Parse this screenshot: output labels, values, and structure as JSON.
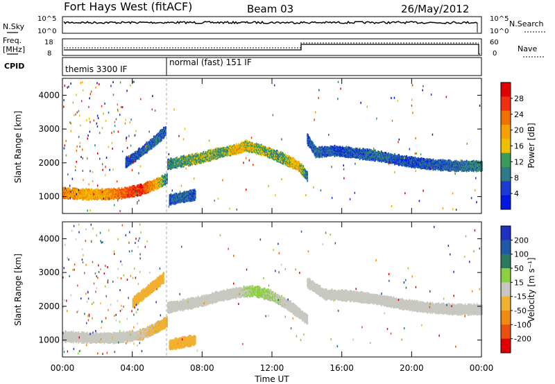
{
  "header": {
    "station": "Fort Hays West (fitACF)",
    "beam": "Beam 03",
    "date": "26/May/2012"
  },
  "top_panels": {
    "nsky_label": "N.Sky",
    "nsky_ticks": [
      "10^5",
      "10^0"
    ],
    "nsearch_label": "N.Search",
    "nsearch_ticks": [
      "10^5",
      "10^0"
    ],
    "freq_label_1": "Freq.",
    "freq_label_2": "[MHz]",
    "freq_ticks": [
      "18",
      "8"
    ],
    "nave_label": "Nave",
    "nave_ticks": [
      "60",
      "0"
    ],
    "cpid_label": "CPID",
    "cpid_modes": [
      {
        "name": "themis 3300 IF",
        "start_hour": 0,
        "end_hour": 6
      },
      {
        "name": "normal (fast) 151 IF",
        "start_hour": 6,
        "end_hour": 24
      }
    ]
  },
  "colors": {
    "power_scale": [
      "#0018e0",
      "#1a3cd0",
      "#2e7a8a",
      "#3a9a5a",
      "#f0c000",
      "#f8a000",
      "#f07000",
      "#f03010",
      "#e00000"
    ],
    "velocity_scale": [
      "#2030c0",
      "#2058a8",
      "#2a7a60",
      "#8cd040",
      "#c8c8c0",
      "#f0b030",
      "#f08a10",
      "#e85010",
      "#e00000"
    ]
  },
  "chart_data": [
    {
      "type": "heatmap",
      "name": "power",
      "ylabel": "Slant Range [km]",
      "yticks": [
        "1000",
        "2000",
        "3000",
        "4000"
      ],
      "ylim": [
        500,
        4500
      ],
      "xlim": [
        0,
        24
      ],
      "colorbar_label": "Power [dB]",
      "colorbar_ticks": [
        "28",
        "24",
        "20",
        "16",
        "12",
        "8",
        "4"
      ],
      "colorbar_range": [
        0,
        32
      ],
      "bands": [
        {
          "hours": [
            0,
            0.6,
            1.5,
            2.5,
            3.5,
            4.5,
            5.5,
            6.0
          ],
          "range_km": [
            1100,
            1080,
            1060,
            1060,
            1100,
            1200,
            1400,
            1550
          ],
          "power_db": [
            22,
            20,
            18,
            20,
            24,
            28,
            16,
            8
          ]
        },
        {
          "hours": [
            6.0,
            7.0,
            8.0,
            9.0,
            10.0,
            10.5,
            11.5,
            12.5,
            13.5,
            14.0
          ],
          "range_km": [
            1950,
            2050,
            2150,
            2300,
            2400,
            2500,
            2350,
            2150,
            1900,
            1600
          ],
          "power_db": [
            10,
            12,
            14,
            12,
            18,
            16,
            14,
            12,
            18,
            8
          ]
        },
        {
          "hours": [
            14.0,
            14.5,
            15.5,
            16.5,
            18.0,
            19.5,
            21.0,
            22.5,
            24.0
          ],
          "range_km": [
            2700,
            2300,
            2350,
            2300,
            2200,
            2050,
            1950,
            1900,
            1900
          ],
          "power_db": [
            6,
            8,
            6,
            6,
            8,
            6,
            6,
            8,
            10
          ]
        },
        {
          "hours": [
            3.6,
            4.2,
            4.8,
            5.4,
            5.9
          ],
          "range_km": [
            2000,
            2200,
            2450,
            2700,
            2950
          ],
          "power_db": [
            6,
            6,
            8,
            8,
            6
          ]
        },
        {
          "hours": [
            6.1,
            6.6,
            7.1,
            7.6
          ],
          "range_km": [
            900,
            950,
            1000,
            1050
          ],
          "power_db": [
            6,
            8,
            8,
            6
          ]
        }
      ]
    },
    {
      "type": "heatmap",
      "name": "velocity",
      "ylabel": "Slant Range [km]",
      "yticks": [
        "1000",
        "2000",
        "3000",
        "4000"
      ],
      "ylim": [
        500,
        4500
      ],
      "xlim": [
        0,
        24
      ],
      "xlabel": "Time UT",
      "xticks": [
        "00:00",
        "04:00",
        "08:00",
        "12:00",
        "16:00",
        "20:00",
        "00:00"
      ],
      "colorbar_label": "Velocity [m s⁻¹]",
      "colorbar_ticks": [
        "200",
        "100",
        "50",
        "15",
        "-15",
        "-50",
        "-100",
        "-200"
      ],
      "colorbar_range": [
        -250,
        250
      ],
      "bands": [
        {
          "hours": [
            0,
            1.5,
            3.0,
            4.5,
            5.5,
            6.0
          ],
          "range_km": [
            1100,
            1060,
            1060,
            1150,
            1400,
            1550
          ],
          "velocity": [
            0,
            -5,
            0,
            -20,
            -40,
            -60
          ]
        },
        {
          "hours": [
            6.0,
            7.0,
            8.0,
            9.0,
            10.0,
            11.0,
            12.0,
            13.0,
            14.0
          ],
          "range_km": [
            1950,
            2050,
            2150,
            2300,
            2400,
            2450,
            2300,
            2000,
            1600
          ],
          "velocity": [
            0,
            5,
            0,
            5,
            10,
            40,
            30,
            10,
            0
          ]
        },
        {
          "hours": [
            14.0,
            15.0,
            16.5,
            18.0,
            19.5,
            21.0,
            22.5,
            24.0
          ],
          "range_km": [
            2700,
            2350,
            2300,
            2200,
            2050,
            1950,
            1900,
            1900
          ],
          "velocity": [
            0,
            0,
            5,
            0,
            -5,
            0,
            0,
            5
          ]
        },
        {
          "hours": [
            4.0,
            4.6,
            5.2,
            5.8
          ],
          "range_km": [
            2100,
            2350,
            2600,
            2850
          ],
          "velocity": [
            -50,
            -60,
            -70,
            -60
          ]
        },
        {
          "hours": [
            6.1,
            6.6,
            7.1,
            7.6
          ],
          "range_km": [
            850,
            900,
            950,
            1000
          ],
          "velocity": [
            -60,
            -70,
            -65,
            -60
          ]
        }
      ]
    }
  ]
}
